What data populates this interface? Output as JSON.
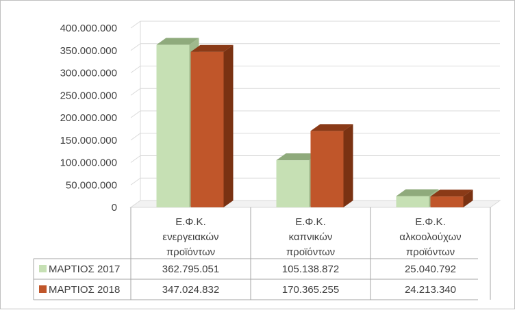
{
  "chart_data": {
    "type": "bar",
    "title": "",
    "xlabel": "",
    "ylabel": "",
    "ylim": [
      0,
      400000000
    ],
    "yticks": [
      "0",
      "50.000.000",
      "100.000.000",
      "150.000.000",
      "200.000.000",
      "250.000.000",
      "300.000.000",
      "350.000.000",
      "400.000.000"
    ],
    "grid": true,
    "legend": "data-table-left",
    "categories": [
      [
        "Ε.Φ.Κ.",
        "ενεργειακών",
        "προϊόντων"
      ],
      [
        "Ε.Φ.Κ.",
        "καπνικών",
        "προϊόντων"
      ],
      [
        "Ε.Φ.Κ.",
        "αλκοολούχων",
        "προϊόντων"
      ]
    ],
    "series": [
      {
        "name": "ΜΑΡΤΙΟΣ 2017",
        "values": [
          362795051,
          105138872,
          25040792
        ],
        "labels": [
          "362.795.051",
          "105.138.872",
          "25.040.792"
        ],
        "color": "#c6e0b4",
        "top_color": "#8faa7c",
        "side_color": "#9fb98d"
      },
      {
        "name": "ΜΑΡΤΙΟΣ 2018",
        "values": [
          347024832,
          170365255,
          24213340
        ],
        "labels": [
          "347.024.832",
          "170.365.255",
          "24.213.340"
        ],
        "color": "#c0562a",
        "top_color": "#8a3a17",
        "side_color": "#7a3212"
      }
    ]
  }
}
